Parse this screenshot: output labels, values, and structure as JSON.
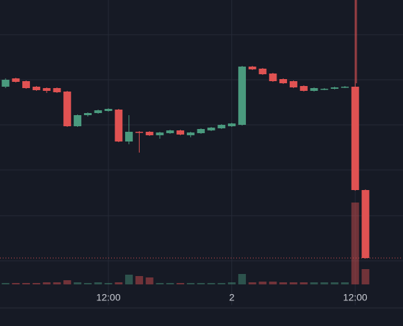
{
  "chart_data": {
    "type": "candlestick",
    "categories": [
      null,
      null,
      null,
      null,
      null,
      null,
      null,
      null,
      null,
      null,
      "12:00",
      null,
      null,
      null,
      null,
      null,
      null,
      null,
      null,
      null,
      null,
      null,
      "2",
      null,
      null,
      null,
      null,
      null,
      null,
      null,
      null,
      null,
      null,
      null,
      "12:00",
      null
    ],
    "open": [
      315,
      327,
      323,
      315,
      313,
      313,
      308,
      258,
      274,
      277,
      280,
      282,
      236,
      250,
      250,
      245,
      248,
      252,
      245,
      248,
      252,
      255,
      258,
      260,
      344,
      341,
      334,
      326,
      323,
      316,
      309,
      311,
      312,
      314,
      315,
      166
    ],
    "high": [
      327,
      328,
      324,
      316,
      314,
      314,
      309,
      275,
      278,
      282,
      284,
      283,
      274,
      251,
      251,
      250,
      253,
      253,
      250,
      255,
      257,
      261,
      263,
      345,
      345,
      342,
      335,
      327,
      324,
      317,
      314,
      313,
      315,
      316,
      440,
      167
    ],
    "low": [
      313,
      321,
      312,
      309,
      306,
      306,
      257,
      257,
      272,
      276,
      279,
      235,
      232,
      220,
      244,
      240,
      247,
      245,
      242,
      247,
      251,
      254,
      257,
      259,
      339,
      332,
      322,
      319,
      313,
      308,
      308,
      310,
      311,
      313,
      165,
      67
    ],
    "close": [
      325,
      322,
      313,
      310,
      309,
      307,
      258,
      274,
      277,
      281,
      283,
      236,
      250,
      249,
      245,
      249,
      252,
      246,
      249,
      254,
      256,
      260,
      262,
      344,
      340,
      333,
      323,
      320,
      314,
      309,
      313,
      312,
      314,
      315,
      166,
      68
    ],
    "volume": [
      2,
      2,
      2,
      2,
      3,
      3,
      6,
      3,
      2,
      3,
      2,
      3,
      14,
      12,
      10,
      2,
      2,
      2,
      2,
      2,
      2,
      2,
      3,
      15,
      3,
      4,
      4,
      3,
      3,
      3,
      3,
      3,
      3,
      3,
      118,
      22
    ],
    "ylim": [
      0,
      440
    ],
    "volume_ylim": [
      0,
      410
    ],
    "up_color": "#4a9a7e",
    "down_color": "#e05252",
    "last_price_line": true
  }
}
